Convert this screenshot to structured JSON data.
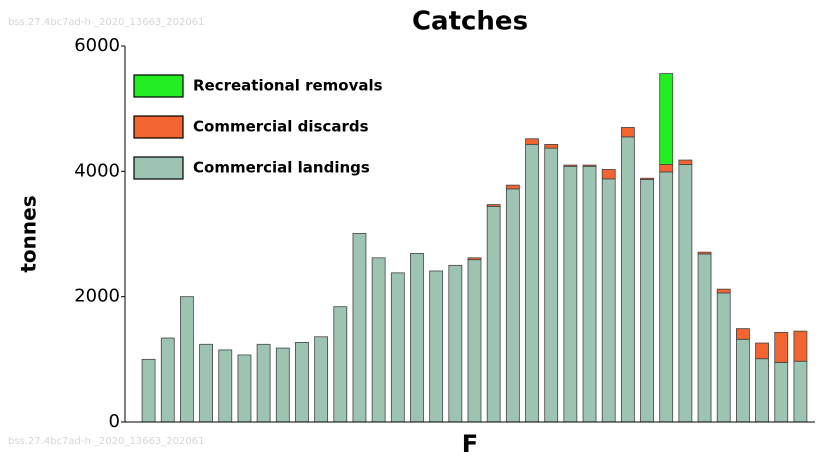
{
  "chart_data": {
    "type": "stacked_bar",
    "title": "Catches",
    "xlabel": "F",
    "ylabel": "tonnes",
    "watermarks": [
      "bss.27.4bc7ad-h _2020_13663_202061",
      "bss.27.4bc7ad-h _2020_13663_202061"
    ],
    "categories": [
      null,
      null,
      null,
      null,
      null,
      null,
      null,
      null,
      null,
      null,
      null,
      null,
      null,
      null,
      null,
      null,
      null,
      null,
      null,
      null,
      null,
      null,
      null,
      null,
      null,
      null,
      null,
      null,
      null,
      null,
      null,
      null,
      null,
      null,
      null
    ],
    "series": [
      {
        "name": "Commercial landings",
        "color": "#9dc3b3",
        "values": [
          1000,
          1340,
          2000,
          1240,
          1150,
          1070,
          1240,
          1180,
          1270,
          1360,
          1840,
          3010,
          2620,
          2380,
          2690,
          2410,
          2500,
          2590,
          3440,
          3720,
          4430,
          4370,
          4080,
          4080,
          3880,
          4550,
          3870,
          3990,
          4110,
          2680,
          2060,
          1320,
          1010,
          950,
          970
        ]
      },
      {
        "name": "Commercial discards",
        "color": "#f26430",
        "values": [
          0,
          0,
          0,
          0,
          0,
          0,
          0,
          0,
          0,
          0,
          0,
          0,
          0,
          0,
          0,
          0,
          0,
          30,
          30,
          60,
          90,
          60,
          20,
          20,
          150,
          150,
          20,
          120,
          70,
          30,
          60,
          170,
          250,
          480,
          480
        ]
      },
      {
        "name": "Recreational removals",
        "color": "#22ee22",
        "values": [
          0,
          0,
          0,
          0,
          0,
          0,
          0,
          0,
          0,
          0,
          0,
          0,
          0,
          0,
          0,
          0,
          0,
          0,
          0,
          0,
          0,
          0,
          0,
          0,
          0,
          0,
          0,
          1450,
          0,
          0,
          0,
          0,
          0,
          0,
          0
        ]
      }
    ],
    "ylim": [
      0,
      6000
    ],
    "yticks": [
      0,
      2000,
      4000,
      6000
    ],
    "legend": "upper left"
  }
}
